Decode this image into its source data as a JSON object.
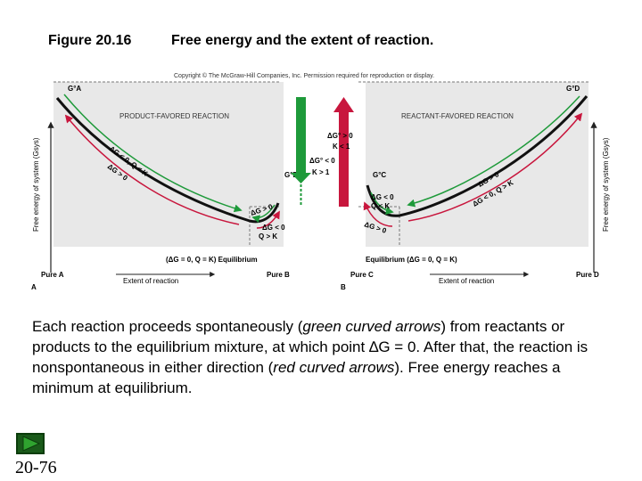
{
  "figure": {
    "number": "Figure 20.16",
    "title": "Free energy and the extent of reaction."
  },
  "diagram": {
    "copyright": "Copyright © The McGraw-Hill Companies, Inc. Permission required for reproduction or display.",
    "panel_a": {
      "letter": "A",
      "heading": "PRODUCT-FAVORED REACTION",
      "start_label": "G°A",
      "end_label": "G°B",
      "left_arrow_1": "ΔG < 0, Q < K",
      "left_arrow_2": "ΔG > 0",
      "right_arrow_1": "ΔG > 0",
      "right_arrow_2": "ΔG < 0",
      "right_arrow_3": "Q > K",
      "equilibrium": "(ΔG = 0, Q = K) Equilibrium",
      "x_start": "Pure A",
      "x_end": "Pure B",
      "x_label": "Extent of reaction",
      "y_label": "Free energy of system (Gsys)"
    },
    "panel_b": {
      "letter": "B",
      "heading": "REACTANT-FAVORED REACTION",
      "start_label": "G°C",
      "end_label": "G°D",
      "right_arrow_1": "ΔG > 0",
      "right_arrow_2": "ΔG < 0, Q > K",
      "left_arrow_1": "ΔG < 0",
      "left_arrow_2": "Q < K",
      "left_arrow_3": "ΔG > 0",
      "equilibrium": "Equilibrium (ΔG = 0, Q = K)",
      "x_start": "Pure C",
      "x_end": "Pure D",
      "x_label": "Extent of reaction",
      "y_label": "Free energy of system (Gsys)"
    },
    "center": {
      "label_a_1": "ΔG° < 0",
      "label_a_2": "K > 1",
      "label_b_1": "ΔG° > 0",
      "label_b_2": "K < 1"
    },
    "colors": {
      "green": "#1e9a3a",
      "red": "#c8163d",
      "panel_bg": "#e8e8e8",
      "curve": "#111111"
    }
  },
  "caption": {
    "part1": "Each reaction proceeds spontaneously (",
    "part2": "green curved arrows",
    "part3": ") from reactants or products to the equilibrium mixture, at which point ∆G = 0. After that, the reaction is nonspontaneous in either direction (",
    "part4": "red curved arrows",
    "part5": "). Free energy reaches a minimum at equilibrium."
  },
  "footer": {
    "page_number": "20-76",
    "nav_icon": "forward-triangle-icon"
  }
}
